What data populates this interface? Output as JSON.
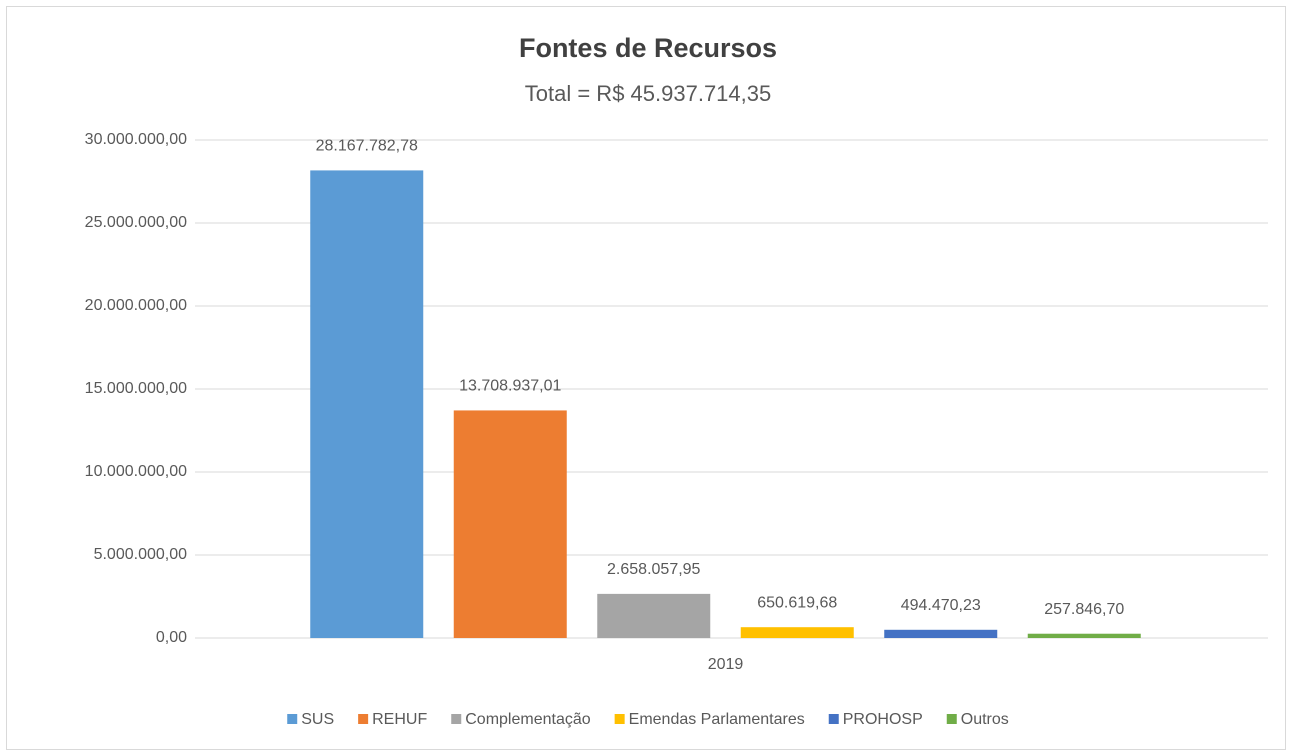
{
  "chart_data": {
    "type": "bar",
    "title": "Fontes de Recursos",
    "subtitle": "Total = R$ 45.937.714,35",
    "categories": [
      "2019"
    ],
    "series": [
      {
        "name": "SUS",
        "color": "#5b9bd5",
        "values": [
          28167782.78
        ],
        "value_labels": [
          "28.167.782,78"
        ]
      },
      {
        "name": "REHUF",
        "color": "#ed7d31",
        "values": [
          13708937.01
        ],
        "value_labels": [
          "13.708.937,01"
        ]
      },
      {
        "name": "Complementação",
        "color": "#a5a5a5",
        "values": [
          2658057.95
        ],
        "value_labels": [
          "2.658.057,95"
        ]
      },
      {
        "name": "Emendas Parlamentares",
        "color": "#ffc000",
        "values": [
          650619.68
        ],
        "value_labels": [
          "650.619,68"
        ]
      },
      {
        "name": "PROHOSP",
        "color": "#4472c4",
        "values": [
          494470.23
        ],
        "value_labels": [
          "494.470,23"
        ]
      },
      {
        "name": "Outros",
        "color": "#70ad47",
        "values": [
          257846.7
        ],
        "value_labels": [
          "257.846,70"
        ]
      }
    ],
    "ylim": [
      0,
      30000000
    ],
    "yticks": [
      {
        "value": 0,
        "label": "0,00"
      },
      {
        "value": 5000000,
        "label": "5.000.000,00"
      },
      {
        "value": 10000000,
        "label": "10.000.000,00"
      },
      {
        "value": 15000000,
        "label": "15.000.000,00"
      },
      {
        "value": 20000000,
        "label": "20.000.000,00"
      },
      {
        "value": 25000000,
        "label": "25.000.000,00"
      },
      {
        "value": 30000000,
        "label": "30.000.000,00"
      }
    ],
    "grid": true,
    "legend": "bottom"
  }
}
